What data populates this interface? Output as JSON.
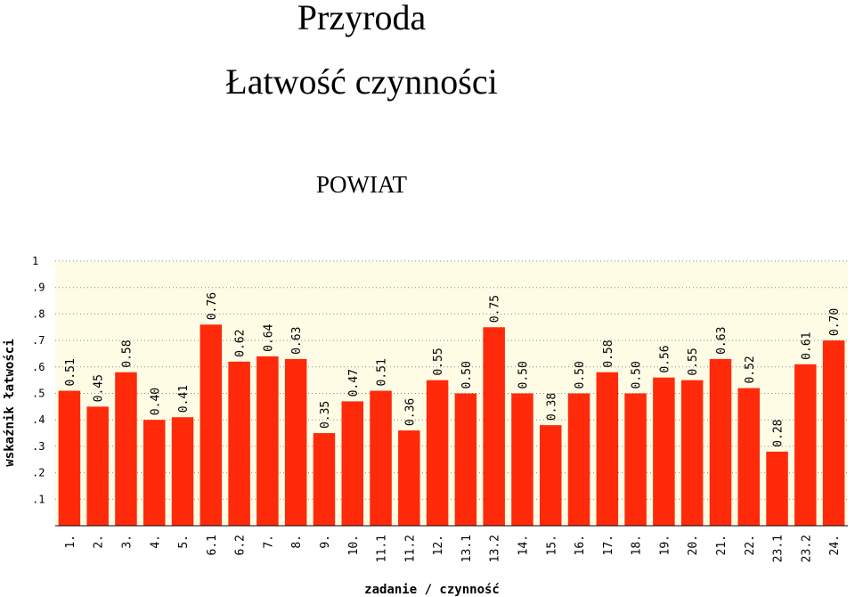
{
  "header": {
    "title": "Przyroda",
    "subtitle": "Łatwość czynności",
    "scope": "POWIAT"
  },
  "chart_data": {
    "type": "bar",
    "xlabel": "zadanie / czynność",
    "ylabel": "wskaźnik łatwości",
    "ylim": [
      0,
      1
    ],
    "yticks": [
      "1",
      ".9",
      ".8",
      ".7",
      ".6",
      ".5",
      ".4",
      ".3",
      ".2",
      ".1"
    ],
    "grid": true,
    "bar_color": "#ff2a0a",
    "plot_background": "#fffce6",
    "categories": [
      "1.",
      "2.",
      "3.",
      "4.",
      "5.",
      "6.1",
      "6.2",
      "7.",
      "8.",
      "9.",
      "10.",
      "11.1",
      "11.2",
      "12.",
      "13.1",
      "13.2",
      "14.",
      "15.",
      "16.",
      "17.",
      "18.",
      "19.",
      "20.",
      "21.",
      "22.",
      "23.1",
      "23.2",
      "24."
    ],
    "values": [
      0.51,
      0.45,
      0.58,
      0.4,
      0.41,
      0.76,
      0.62,
      0.64,
      0.63,
      0.35,
      0.47,
      0.51,
      0.36,
      0.55,
      0.5,
      0.75,
      0.5,
      0.38,
      0.5,
      0.58,
      0.5,
      0.56,
      0.55,
      0.63,
      0.52,
      0.28,
      0.61,
      0.7
    ],
    "labels": [
      "0.51",
      "0.45",
      "0.58",
      "0.40",
      "0.41",
      "0.76",
      "0.62",
      "0.64",
      "0.63",
      "0.35",
      "0.47",
      "0.51",
      "0.36",
      "0.55",
      "0.50",
      "0.75",
      "0.50",
      "0.38",
      "0.50",
      "0.58",
      "0.50",
      "0.56",
      "0.55",
      "0.63",
      "0.52",
      "0.28",
      "0.61",
      "0.70"
    ]
  }
}
